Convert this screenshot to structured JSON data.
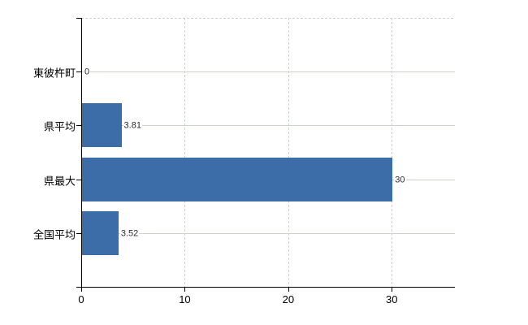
{
  "chart_data": {
    "type": "bar",
    "orientation": "horizontal",
    "title": "",
    "xlabel": "",
    "ylabel": "",
    "categories": [
      "東彼杵町",
      "県平均",
      "県最大",
      "全国平均"
    ],
    "values": [
      0,
      3.81,
      30,
      3.52
    ],
    "value_labels": [
      "0",
      "3.81",
      "30",
      "3.52"
    ],
    "x_ticks": [
      0,
      10,
      20,
      30
    ],
    "x_tick_labels": [
      "0",
      "10",
      "20",
      "30"
    ],
    "xlim": [
      0,
      36.1
    ],
    "grid": true,
    "legend": false
  },
  "style": {
    "bar_color": "#3c6da8",
    "h_grid_color": "#ccd4cb",
    "v_grid_color": "#d6ced6",
    "axis_color": "#000000",
    "category_text_color": "#000000",
    "value_text_color": "#2b2b2b"
  }
}
